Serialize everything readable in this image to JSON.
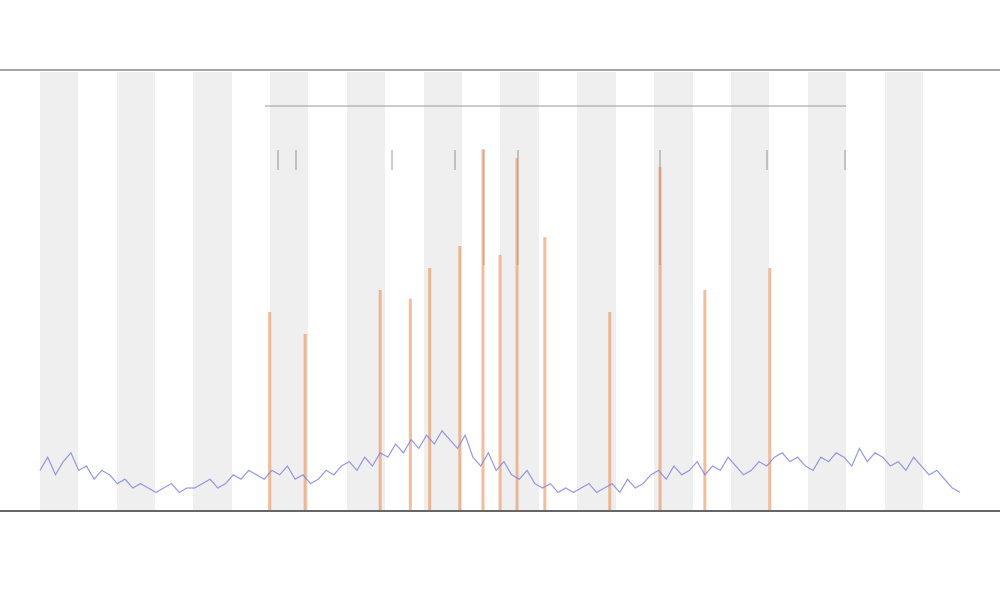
{
  "chart_data": [
    {
      "type": "line",
      "color": "#7b7fe0",
      "xlim": [
        0,
        119
      ],
      "ylim": [
        0,
        100
      ],
      "x": [
        0,
        1,
        2,
        3,
        4,
        5,
        6,
        7,
        8,
        9,
        10,
        11,
        12,
        13,
        14,
        15,
        16,
        17,
        18,
        19,
        20,
        21,
        22,
        23,
        24,
        25,
        26,
        27,
        28,
        29,
        30,
        31,
        32,
        33,
        34,
        35,
        36,
        37,
        38,
        39,
        40,
        41,
        42,
        43,
        44,
        45,
        46,
        47,
        48,
        49,
        50,
        51,
        52,
        53,
        54,
        55,
        56,
        57,
        58,
        59,
        60,
        61,
        62,
        63,
        64,
        65,
        66,
        67,
        68,
        69,
        70,
        71,
        72,
        73,
        74,
        75,
        76,
        77,
        78,
        79,
        80,
        81,
        82,
        83,
        84,
        85,
        86,
        87,
        88,
        89,
        90,
        91,
        92,
        93,
        94,
        95,
        96,
        97,
        98,
        99,
        100,
        101,
        102,
        103,
        104,
        105,
        106,
        107,
        108,
        109,
        110,
        111,
        112,
        113,
        114,
        115,
        116,
        117,
        118,
        119
      ],
      "values": [
        9,
        12,
        8,
        11,
        13,
        9,
        10,
        7,
        9,
        8,
        6,
        7,
        5,
        6,
        5,
        4,
        5,
        6,
        4,
        5,
        5,
        6,
        7,
        5,
        6,
        8,
        7,
        9,
        8,
        7,
        9,
        8,
        10,
        7,
        8,
        6,
        7,
        9,
        8,
        10,
        11,
        9,
        12,
        10,
        13,
        12,
        15,
        13,
        16,
        14,
        17,
        15,
        18,
        16,
        14,
        17,
        12,
        10,
        13,
        9,
        11,
        8,
        7,
        9,
        6,
        5,
        6,
        4,
        5,
        4,
        5,
        6,
        4,
        5,
        6,
        4,
        7,
        5,
        6,
        8,
        9,
        7,
        10,
        8,
        9,
        11,
        8,
        10,
        9,
        12,
        10,
        8,
        9,
        11,
        10,
        12,
        13,
        11,
        12,
        10,
        9,
        12,
        11,
        13,
        12,
        10,
        14,
        11,
        13,
        12,
        10,
        11,
        9,
        12,
        10,
        8,
        9,
        7,
        5,
        4
      ]
    },
    {
      "type": "bar",
      "color": "#e8864a",
      "xlim": [
        0,
        119
      ],
      "ylim": [
        0,
        100
      ],
      "x": [
        29.7,
        34.3,
        44,
        47.9,
        50.4,
        54.3,
        57.3,
        59.5,
        61.7,
        65.3,
        73.7,
        80.2,
        86,
        94.4
      ],
      "values": [
        45,
        40,
        50,
        48,
        55,
        60,
        82,
        58,
        80,
        62,
        45,
        78,
        50,
        55
      ]
    }
  ]
}
